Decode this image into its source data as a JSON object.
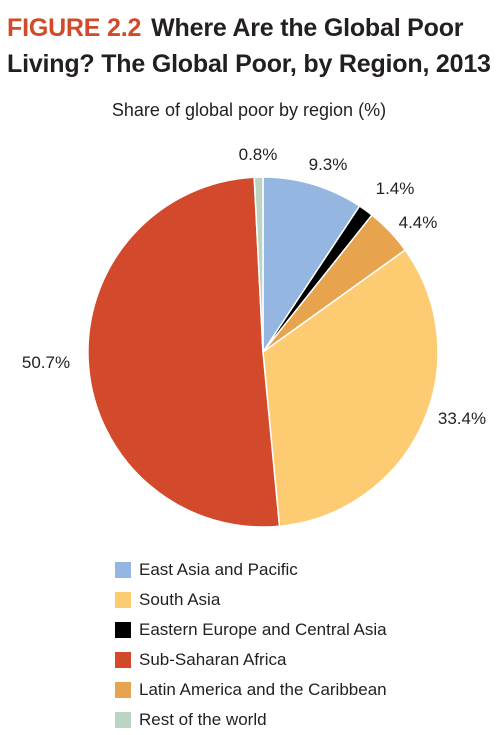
{
  "header": {
    "figure_label": "FIGURE 2.2",
    "title": "Where Are the Global Poor Living? The Global Poor, by Region, 2013"
  },
  "chart_data": {
    "type": "pie",
    "title": "Share of global poor by region (%)",
    "categories": [
      "East Asia and Pacific",
      "Eastern Europe and Central Asia",
      "Latin America and the Caribbean",
      "South Asia",
      "Sub-Saharan Africa",
      "Rest of the world"
    ],
    "values": [
      9.3,
      1.4,
      4.4,
      33.4,
      50.7,
      0.8
    ],
    "labels": [
      "9.3%",
      "1.4%",
      "4.4%",
      "33.4%",
      "50.7%",
      "0.8%"
    ],
    "colors": [
      "#94b6e0",
      "#000000",
      "#e8a34e",
      "#fdcc72",
      "#d24a2b",
      "#bcd5c2"
    ],
    "start_angle_deg": 0,
    "direction": "clockwise",
    "legend_placement": "bottom"
  },
  "legend": [
    {
      "label": "East Asia and Pacific",
      "color": "#94b6e0"
    },
    {
      "label": "South Asia",
      "color": "#fdcc72"
    },
    {
      "label": "Eastern Europe and Central Asia",
      "color": "#000000"
    },
    {
      "label": "Sub-Saharan Africa",
      "color": "#d24a2b"
    },
    {
      "label": "Latin America and the Caribbean",
      "color": "#e8a34e"
    },
    {
      "label": "Rest of the world",
      "color": "#bcd5c2"
    }
  ]
}
